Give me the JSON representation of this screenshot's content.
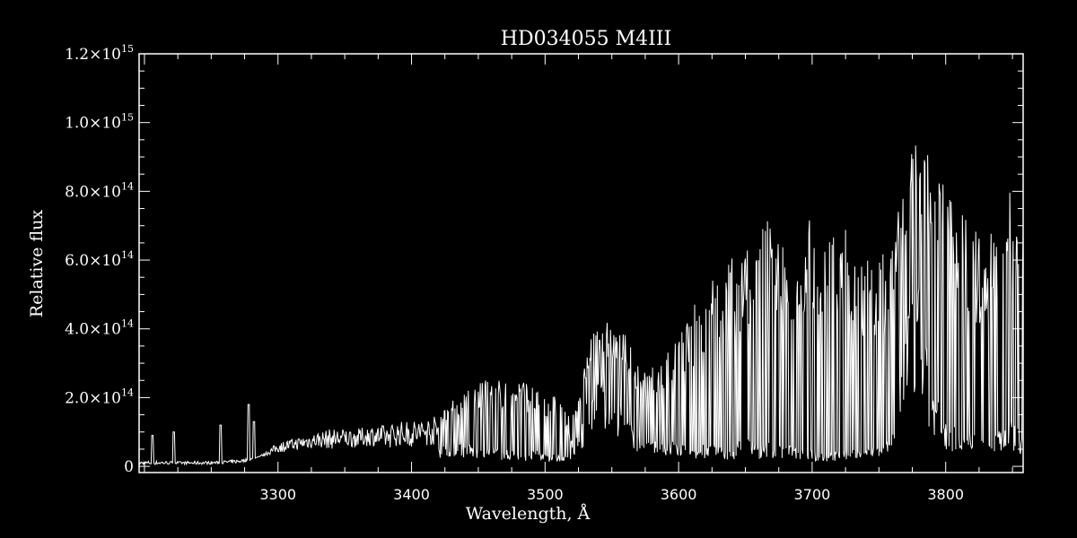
{
  "chart_data": {
    "type": "line",
    "title": "HD034055   M4III",
    "xlabel": "Wavelength, Å",
    "ylabel": "Relative flux",
    "xlim": [
      3196,
      3858
    ],
    "ylim": [
      -18000000000000.0,
      1200000000000000.0
    ],
    "grid": false,
    "legend": "none",
    "colors": {
      "background": "#000000",
      "line": "#ffffff",
      "axes": "#ffffff"
    },
    "x_ticks": [
      {
        "value": 3300,
        "label": "3300"
      },
      {
        "value": 3400,
        "label": "3400"
      },
      {
        "value": 3500,
        "label": "3500"
      },
      {
        "value": 3600,
        "label": "3600"
      },
      {
        "value": 3700,
        "label": "3700"
      },
      {
        "value": 3800,
        "label": "3800"
      }
    ],
    "y_ticks": [
      {
        "value": 0,
        "mant": "0",
        "exp": ""
      },
      {
        "value": 200000000000000.0,
        "mant": "2.0×10",
        "exp": "14"
      },
      {
        "value": 400000000000000.0,
        "mant": "4.0×10",
        "exp": "14"
      },
      {
        "value": 600000000000000.0,
        "mant": "6.0×10",
        "exp": "14"
      },
      {
        "value": 800000000000000.0,
        "mant": "8.0×10",
        "exp": "14"
      },
      {
        "value": 1000000000000000.0,
        "mant": "1.0×10",
        "exp": "15"
      },
      {
        "value": 1200000000000000.0,
        "mant": "1.2×10",
        "exp": "15"
      }
    ],
    "series": [
      {
        "x": [
          3196,
          3210,
          3225,
          3240,
          3255,
          3270,
          3280,
          3290,
          3300,
          3310,
          3320,
          3330,
          3340,
          3350,
          3360,
          3370,
          3380,
          3390,
          3400,
          3410,
          3420,
          3430,
          3440,
          3450,
          3460,
          3470,
          3480,
          3490,
          3500,
          3510,
          3520,
          3525,
          3530,
          3535,
          3540,
          3550,
          3560,
          3570,
          3580,
          3590,
          3600,
          3610,
          3620,
          3630,
          3640,
          3650,
          3660,
          3665,
          3670,
          3680,
          3690,
          3700,
          3710,
          3720,
          3730,
          3740,
          3750,
          3760,
          3770,
          3775,
          3780,
          3785,
          3790,
          3800,
          3810,
          3820,
          3830,
          3840,
          3850,
          3858
        ],
        "envelope_high": [
          4000000000000.0,
          5000000000000.0,
          6000000000000.0,
          5000000000000.0,
          7000000000000.0,
          9000000000000.0,
          16000000000000.0,
          40000000000000.0,
          70000000000000.0,
          80000000000000.0,
          90000000000000.0,
          100000000000000.0,
          110000000000000.0,
          110000000000000.0,
          110000000000000.0,
          120000000000000.0,
          120000000000000.0,
          130000000000000.0,
          135000000000000.0,
          140000000000000.0,
          150000000000000.0,
          190000000000000.0,
          220000000000000.0,
          240000000000000.0,
          260000000000000.0,
          250000000000000.0,
          260000000000000.0,
          240000000000000.0,
          220000000000000.0,
          200000000000000.0,
          140000000000000.0,
          200000000000000.0,
          300000000000000.0,
          380000000000000.0,
          420000000000000.0,
          420000000000000.0,
          400000000000000.0,
          300000000000000.0,
          290000000000000.0,
          320000000000000.0,
          400000000000000.0,
          460000000000000.0,
          550000000000000.0,
          580000000000000.0,
          620000000000000.0,
          660000000000000.0,
          720000000000000.0,
          760000000000000.0,
          700000000000000.0,
          660000000000000.0,
          720000000000000.0,
          760000000000000.0,
          700000000000000.0,
          720000000000000.0,
          660000000000000.0,
          640000000000000.0,
          600000000000000.0,
          660000000000000.0,
          840000000000000.0,
          920000000000000.0,
          960000000000000.0,
          920000000000000.0,
          880000000000000.0,
          820000000000000.0,
          780000000000000.0,
          700000000000000.0,
          640000000000000.0,
          780000000000000.0,
          820000000000000.0,
          720000000000000.0
        ],
        "envelope_low": [
          15000000000000.0,
          16000000000000.0,
          14000000000000.0,
          15000000000000.0,
          15000000000000.0,
          20000000000000.0,
          25000000000000.0,
          30000000000000.0,
          40000000000000.0,
          45000000000000.0,
          50000000000000.0,
          55000000000000.0,
          50000000000000.0,
          55000000000000.0,
          55000000000000.0,
          60000000000000.0,
          50000000000000.0,
          60000000000000.0,
          55000000000000.0,
          60000000000000.0,
          60000000000000.0,
          70000000000000.0,
          60000000000000.0,
          50000000000000.0,
          50000000000000.0,
          40000000000000.0,
          40000000000000.0,
          40000000000000.0,
          35000000000000.0,
          30000000000000.0,
          20000000000000.0,
          90000000000000.0,
          160000000000000.0,
          220000000000000.0,
          220000000000000.0,
          180000000000000.0,
          140000000000000.0,
          80000000000000.0,
          60000000000000.0,
          60000000000000.0,
          60000000000000.0,
          40000000000000.0,
          60000000000000.0,
          50000000000000.0,
          40000000000000.0,
          80000000000000.0,
          50000000000000.0,
          60000000000000.0,
          60000000000000.0,
          50000000000000.0,
          50000000000000.0,
          40000000000000.0,
          30000000000000.0,
          40000000000000.0,
          40000000000000.0,
          60000000000000.0,
          50000000000000.0,
          100000000000000.0,
          400000000000000.0,
          500000000000000.0,
          450000000000000.0,
          300000000000000.0,
          200000000000000.0,
          120000000000000.0,
          100000000000000.0,
          80000000000000.0,
          60000000000000.0,
          100000000000000.0,
          120000000000000.0,
          80000000000000.0
        ]
      }
    ]
  }
}
